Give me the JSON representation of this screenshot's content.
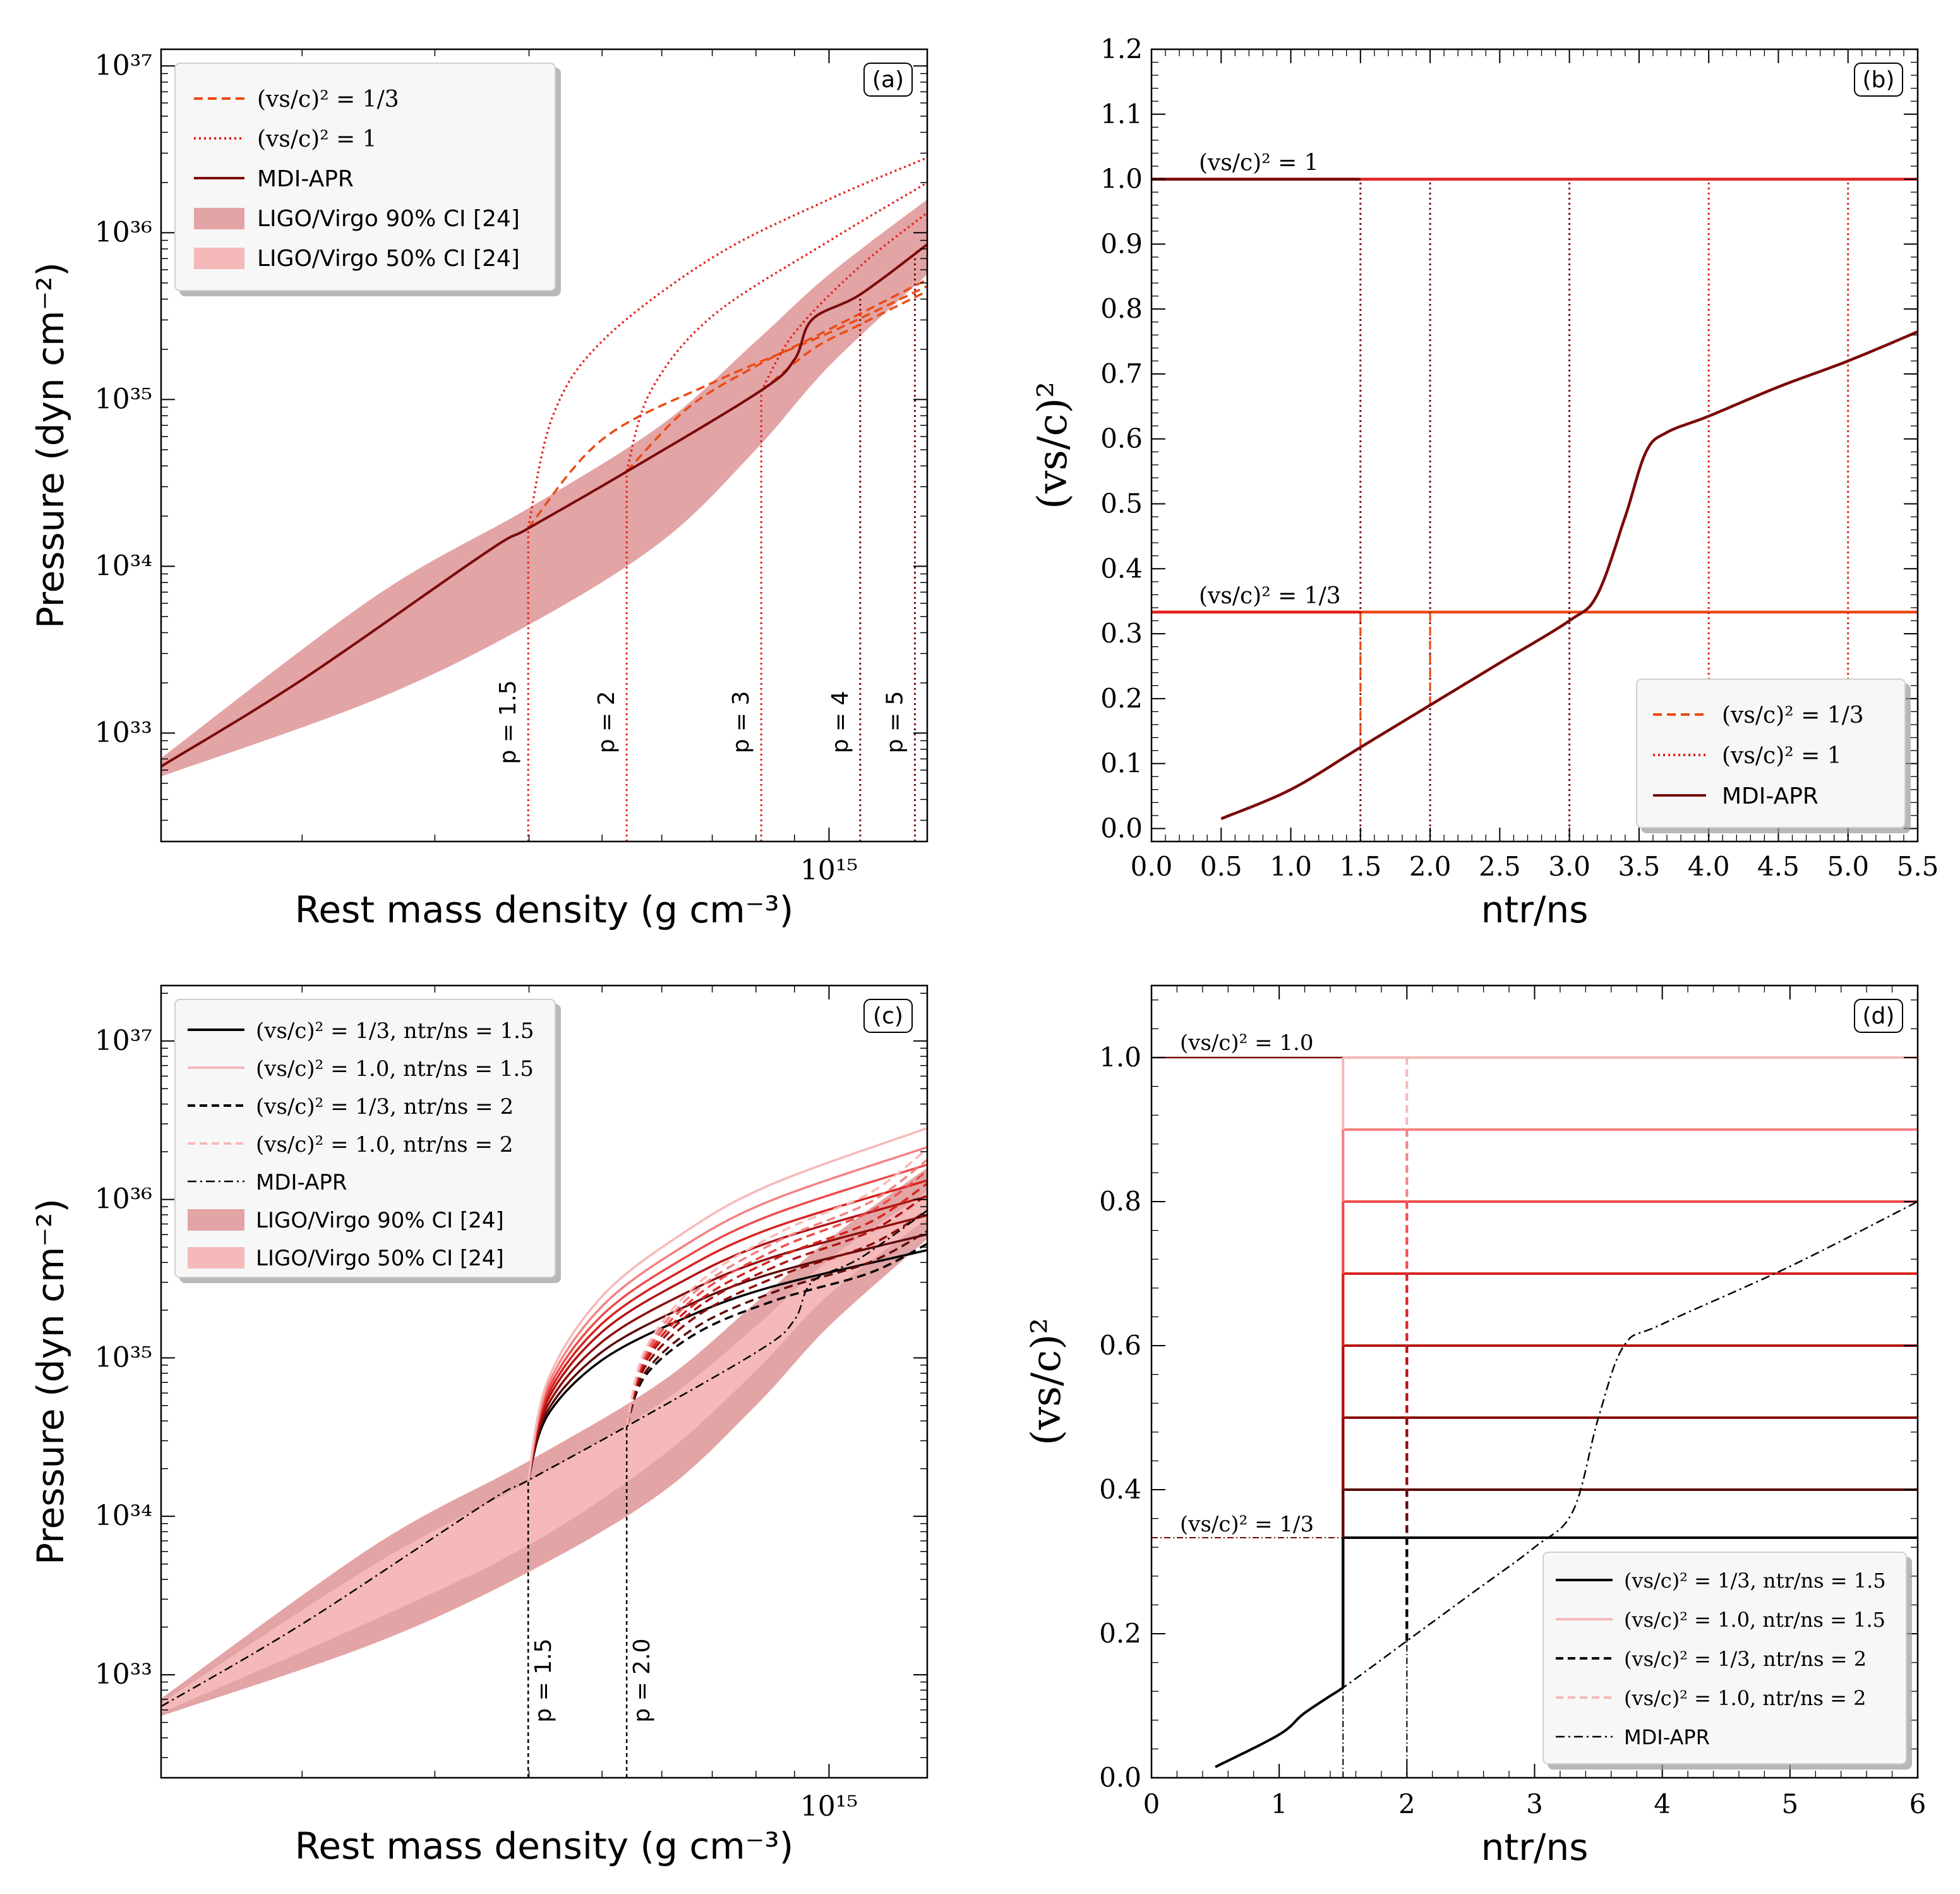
{
  "colors": {
    "mdi": "#7a0a0a",
    "orange": "#ea4a14",
    "red": "#e4211e",
    "ci90": "#e3a4a5",
    "ci50": "#f5b9b9",
    "pink": "#f7b8b8",
    "black": "#000000"
  },
  "chart_data": [
    {
      "id": "a",
      "type": "line",
      "panel_label": "(a)",
      "xlabel": "Rest mass density (g cm⁻³)",
      "ylabel": "Pressure (dyn cm⁻²)",
      "x_scale": "log",
      "y_scale": "log",
      "xlim": [
        130000000000000.0,
        1350000000000000.0
      ],
      "ylim_log10": [
        32.35,
        37.1
      ],
      "x_tick_labels": [
        "10¹⁵"
      ],
      "y_tick_labels": [
        "10³³",
        "10³⁴",
        "10³⁵",
        "10³⁶",
        "10³⁷"
      ],
      "grid": false,
      "legend_position": "top-left",
      "legend": [
        "(vs/c)² = 1/3",
        "(vs/c)² = 1",
        "MDI-APR",
        "LIGO/Virgo 90% CI [24]",
        "LIGO/Virgo 50% CI [24]"
      ],
      "annotations": [
        "p = 1.5",
        "p = 2",
        "p = 3",
        "p = 4",
        "p = 5"
      ],
      "transition_density": [
        399000000000000.0,
        539000000000000.0,
        813000000000000.0,
        1100000000000000.0,
        1300000000000000.0
      ],
      "mdi_apr": {
        "x": [
          130000000000000.0,
          200000000000000.0,
          350000000000000.0,
          400000000000000.0,
          540000000000000.0,
          810000000000000.0,
          900000000000000.0,
          950000000000000.0,
          1100000000000000.0,
          1350000000000000.0
        ],
        "log10p": [
          32.8,
          33.32,
          34.08,
          34.23,
          34.57,
          35.05,
          35.24,
          35.48,
          35.63,
          35.93
        ]
      },
      "ci90": {
        "x": [
          130000000000000.0,
          250000000000000.0,
          400000000000000.0,
          600000000000000.0,
          800000000000000.0,
          1000000000000000.0,
          1350000000000000.0
        ],
        "lower": [
          32.74,
          33.2,
          33.65,
          34.15,
          34.7,
          35.2,
          35.75
        ],
        "upper": [
          32.85,
          33.82,
          34.35,
          34.85,
          35.35,
          35.75,
          36.2
        ]
      },
      "ci50": {
        "x": [
          130000000000000.0,
          250000000000000.0,
          400000000000000.0,
          600000000000000.0,
          800000000000000.0,
          1000000000000000.0,
          1350000000000000.0
        ],
        "lower": [
          32.76,
          33.35,
          33.82,
          34.38,
          34.92,
          35.4,
          35.88
        ],
        "upper": [
          32.82,
          33.7,
          34.22,
          34.72,
          35.2,
          35.62,
          36.05
        ]
      },
      "series": [
        {
          "name": "(vs/c)² = 1/3",
          "start": 399000000000000.0,
          "x": [
            399000000000000.0,
            500000000000000.0,
            700000000000000.0,
            1000000000000000.0,
            1350000000000000.0
          ],
          "log10p": [
            34.23,
            34.76,
            35.1,
            35.4,
            35.68
          ]
        },
        {
          "name": "(vs/c)² = 1/3",
          "start": 539000000000000.0,
          "x": [
            539000000000000.0,
            650000000000000.0,
            800000000000000.0,
            1000000000000000.0,
            1350000000000000.0
          ],
          "log10p": [
            34.57,
            34.95,
            35.2,
            35.42,
            35.72
          ]
        },
        {
          "name": "(vs/c)² = 1/3",
          "start": 813000000000000.0,
          "x": [
            813000000000000.0,
            950000000000000.0,
            1100000000000000.0,
            1350000000000000.0
          ],
          "log10p": [
            35.05,
            35.3,
            35.45,
            35.65
          ]
        },
        {
          "name": "(vs/c)² = 1",
          "start": 399000000000000.0,
          "x": [
            399000000000000.0,
            430000000000000.0,
            500000000000000.0,
            700000000000000.0,
            1000000000000000.0,
            1350000000000000.0
          ],
          "log10p": [
            34.23,
            34.9,
            35.35,
            35.85,
            36.2,
            36.45
          ]
        },
        {
          "name": "(vs/c)² = 1",
          "start": 539000000000000.0,
          "x": [
            539000000000000.0,
            580000000000000.0,
            700000000000000.0,
            1000000000000000.0,
            1350000000000000.0
          ],
          "log10p": [
            34.57,
            35.05,
            35.5,
            35.95,
            36.3
          ]
        },
        {
          "name": "(vs/c)² = 1",
          "start": 813000000000000.0,
          "x": [
            813000000000000.0,
            900000000000000.0,
            1100000000000000.0,
            1350000000000000.0
          ],
          "log10p": [
            35.05,
            35.4,
            35.8,
            36.12
          ]
        }
      ]
    },
    {
      "id": "b",
      "type": "line",
      "panel_label": "(b)",
      "xlabel": "ntr/ns",
      "ylabel": "(vs/c)²",
      "xlim": [
        0,
        5.5
      ],
      "ylim": [
        -0.02,
        1.2
      ],
      "x_tick_labels": [
        "0.0",
        "0.5",
        "1.0",
        "1.5",
        "2.0",
        "2.5",
        "3.0",
        "3.5",
        "4.0",
        "4.5",
        "5.0",
        "5.5"
      ],
      "y_tick_labels": [
        "0.0",
        "0.1",
        "0.2",
        "0.3",
        "0.4",
        "0.5",
        "0.6",
        "0.7",
        "0.8",
        "0.9",
        "1.0",
        "1.1",
        "1.2"
      ],
      "grid": false,
      "legend_position": "bottom-right",
      "legend": [
        "(vs/c)² = 1/3",
        "(vs/c)² = 1",
        "MDI-APR"
      ],
      "annotations": [
        "(vs/c)² = 1",
        "(vs/c)² = 1/3"
      ],
      "transitions": [
        1.5,
        2.0,
        3.0,
        4.0,
        5.0
      ],
      "horizontal_levels": [
        1.0,
        0.3333
      ],
      "mdi_apr": {
        "x": [
          0.5,
          1.0,
          1.5,
          2.0,
          2.5,
          3.0,
          3.2,
          3.4,
          3.55,
          3.7,
          4.0,
          4.5,
          5.0,
          5.5
        ],
        "y": [
          0.015,
          0.06,
          0.125,
          0.19,
          0.255,
          0.32,
          0.36,
          0.48,
          0.58,
          0.61,
          0.635,
          0.68,
          0.72,
          0.765
        ]
      }
    },
    {
      "id": "c",
      "type": "line",
      "panel_label": "(c)",
      "xlabel": "Rest mass density (g cm⁻³)",
      "ylabel": "Pressure (dyn cm⁻²)",
      "x_scale": "log",
      "y_scale": "log",
      "xlim": [
        130000000000000.0,
        1350000000000000.0
      ],
      "ylim_log10": [
        32.35,
        37.35
      ],
      "x_tick_labels": [
        "10¹⁵"
      ],
      "y_tick_labels": [
        "10³³",
        "10³⁴",
        "10³⁵",
        "10³⁶",
        "10³⁷"
      ],
      "grid": false,
      "legend_position": "top-left",
      "legend": [
        "(vs/c)² = 1/3,  ntr/ns = 1.5",
        "(vs/c)² = 1.0,  ntr/ns = 1.5",
        "(vs/c)² = 1/3,  ntr/ns = 2",
        "(vs/c)² = 1.0,  ntr/ns = 2",
        "MDI-APR",
        "LIGO/Virgo 90% CI [24]",
        "LIGO/Virgo 50% CI [24]"
      ],
      "annotations": [
        "p = 1.5",
        "p = 2.0"
      ],
      "transition_density": [
        399000000000000.0,
        539000000000000.0
      ],
      "sound_speed_levels": [
        0.3333,
        0.4,
        0.5,
        0.6,
        0.7,
        0.8,
        0.9,
        1.0
      ],
      "end_log10p_from_1p5": [
        35.68,
        35.78,
        35.9,
        36.02,
        36.12,
        36.22,
        36.33,
        36.45
      ],
      "end_log10p_from_2": [
        35.72,
        35.8,
        35.93,
        36.03,
        36.1,
        36.18,
        36.25,
        36.32
      ],
      "mdi_apr": {
        "x": [
          130000000000000.0,
          200000000000000.0,
          350000000000000.0,
          400000000000000.0,
          540000000000000.0,
          810000000000000.0,
          900000000000000.0,
          950000000000000.0,
          1100000000000000.0,
          1350000000000000.0
        ],
        "log10p": [
          32.8,
          33.32,
          34.08,
          34.23,
          34.57,
          35.05,
          35.24,
          35.48,
          35.63,
          35.93
        ]
      }
    },
    {
      "id": "d",
      "type": "line",
      "panel_label": "(d)",
      "xlabel": "ntr/ns",
      "ylabel": "(vs/c)²",
      "xlim": [
        0,
        6
      ],
      "ylim": [
        0,
        1.1
      ],
      "x_tick_labels": [
        "0",
        "1",
        "2",
        "3",
        "4",
        "5",
        "6"
      ],
      "y_tick_labels": [
        "0.0",
        "0.2",
        "0.4",
        "0.6",
        "0.8",
        "1.0"
      ],
      "grid": false,
      "legend_position": "bottom-right",
      "legend": [
        "(vs/c)² = 1/3,  ntr/ns = 1.5",
        "(vs/c)² = 1.0,  ntr/ns = 1.5",
        "(vs/c)² = 1/3,  ntr/ns = 2",
        "(vs/c)² = 1.0,  ntr/ns = 2",
        "MDI-APR"
      ],
      "annotations": [
        "(vs/c)² = 1.0",
        "(vs/c)² = 1/3"
      ],
      "levels": [
        0.3333,
        0.4,
        0.5,
        0.6,
        0.7,
        0.8,
        0.9,
        1.0
      ],
      "transitions": [
        1.5,
        2.0
      ],
      "mdi_apr": {
        "x": [
          0.5,
          1.0,
          1.2,
          1.5,
          2.0,
          2.5,
          3.0,
          3.3,
          3.5,
          3.7,
          4.0,
          5.0,
          6.0
        ],
        "y": [
          0.015,
          0.06,
          0.09,
          0.125,
          0.19,
          0.255,
          0.32,
          0.37,
          0.5,
          0.6,
          0.63,
          0.71,
          0.8
        ]
      }
    }
  ]
}
